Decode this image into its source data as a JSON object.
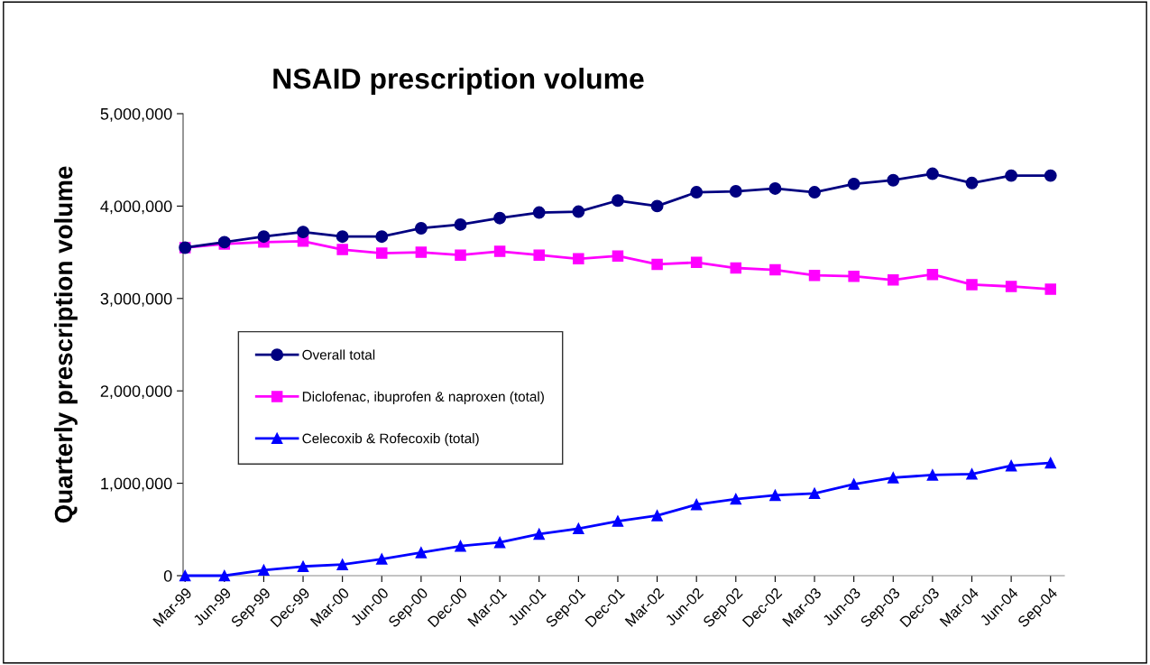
{
  "chart_data": {
    "type": "line",
    "title": "NSAID prescription volume",
    "ylabel": "Quarterly prescription volume",
    "categories": [
      "Mar-99",
      "Jun-99",
      "Sep-99",
      "Dec-99",
      "Mar-00",
      "Jun-00",
      "Sep-00",
      "Dec-00",
      "Mar-01",
      "Jun-01",
      "Sep-01",
      "Dec-01",
      "Mar-02",
      "Jun-02",
      "Sep-02",
      "Dec-02",
      "Mar-03",
      "Jun-03",
      "Sep-03",
      "Dec-03",
      "Mar-04",
      "Jun-04",
      "Sep-04"
    ],
    "series": [
      {
        "name": "Overall total",
        "color": "#000080",
        "marker": "circle",
        "values": [
          3550000,
          3610000,
          3670000,
          3720000,
          3670000,
          3670000,
          3760000,
          3800000,
          3870000,
          3930000,
          3940000,
          4060000,
          4000000,
          4150000,
          4160000,
          4190000,
          4150000,
          4240000,
          4280000,
          4350000,
          4250000,
          4330000,
          4330000
        ]
      },
      {
        "name": "Diclofenac, ibuprofen & naproxen (total)",
        "color": "#ff00ff",
        "marker": "square",
        "values": [
          3550000,
          3590000,
          3610000,
          3620000,
          3530000,
          3490000,
          3500000,
          3470000,
          3510000,
          3470000,
          3430000,
          3460000,
          3370000,
          3390000,
          3330000,
          3310000,
          3250000,
          3240000,
          3200000,
          3260000,
          3150000,
          3130000,
          3100000
        ]
      },
      {
        "name": "Celecoxib & Rofecoxib (total)",
        "color": "#0000ff",
        "marker": "triangle",
        "values": [
          0,
          0,
          60000,
          100000,
          120000,
          180000,
          250000,
          320000,
          360000,
          450000,
          510000,
          590000,
          650000,
          770000,
          830000,
          870000,
          890000,
          990000,
          1060000,
          1090000,
          1100000,
          1190000,
          1220000
        ]
      }
    ],
    "ylim": [
      0,
      5000000
    ],
    "yticks": [
      {
        "value": 0,
        "label": "0"
      },
      {
        "value": 1000000,
        "label": "1,000,000"
      },
      {
        "value": 2000000,
        "label": "2,000,000"
      },
      {
        "value": 3000000,
        "label": "3,000,000"
      },
      {
        "value": 4000000,
        "label": "4,000,000"
      },
      {
        "value": 5000000,
        "label": "5,000,000"
      }
    ],
    "grid": false,
    "legend": "center left",
    "line_style": "solid"
  }
}
